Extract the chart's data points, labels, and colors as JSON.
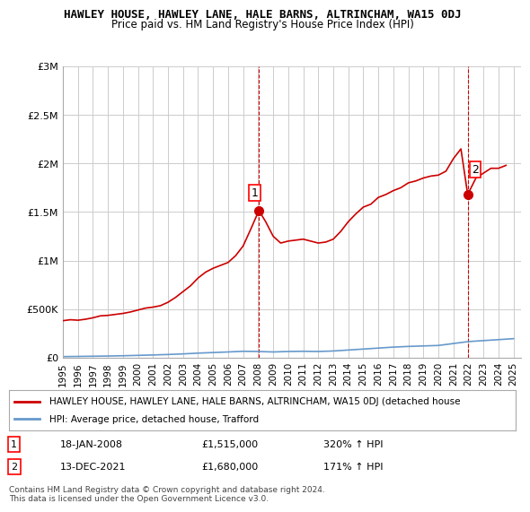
{
  "title": "HAWLEY HOUSE, HAWLEY LANE, HALE BARNS, ALTRINCHAM, WA15 0DJ",
  "subtitle": "Price paid vs. HM Land Registry's House Price Index (HPI)",
  "legend_line1": "HAWLEY HOUSE, HAWLEY LANE, HALE BARNS, ALTRINCHAM, WA15 0DJ (detached house",
  "legend_line2": "HPI: Average price, detached house, Trafford",
  "footer": "Contains HM Land Registry data © Crown copyright and database right 2024.\nThis data is licensed under the Open Government Licence v3.0.",
  "point1_label": "1",
  "point1_date": "18-JAN-2008",
  "point1_price": "£1,515,000",
  "point1_hpi": "320% ↑ HPI",
  "point2_label": "2",
  "point2_date": "13-DEC-2021",
  "point2_price": "£1,680,000",
  "point2_hpi": "171% ↑ HPI",
  "red_line_color": "#cc0000",
  "blue_line_color": "#6699cc",
  "background_color": "#ffffff",
  "grid_color": "#cccccc",
  "point1_x": 2008.05,
  "point1_y": 1515000,
  "point2_x": 2021.95,
  "point2_y": 1680000,
  "ylim": [
    0,
    3000000
  ],
  "xlim": [
    1995,
    2025.5
  ],
  "yticks": [
    0,
    500000,
    1000000,
    1500000,
    2000000,
    2500000,
    3000000
  ],
  "ytick_labels": [
    "£0",
    "£500K",
    "£1M",
    "£1.5M",
    "£2M",
    "£2.5M",
    "£3M"
  ],
  "xticks": [
    1995,
    1996,
    1997,
    1998,
    1999,
    2000,
    2001,
    2002,
    2003,
    2004,
    2005,
    2006,
    2007,
    2008,
    2009,
    2010,
    2011,
    2012,
    2013,
    2014,
    2015,
    2016,
    2017,
    2018,
    2019,
    2020,
    2021,
    2022,
    2023,
    2024,
    2025
  ],
  "red_hpi_data": {
    "x": [
      1995.0,
      1995.5,
      1996.0,
      1996.5,
      1997.0,
      1997.5,
      1998.0,
      1998.5,
      1999.0,
      1999.5,
      2000.0,
      2000.5,
      2001.0,
      2001.5,
      2002.0,
      2002.5,
      2003.0,
      2003.5,
      2004.0,
      2004.5,
      2005.0,
      2005.5,
      2006.0,
      2006.5,
      2007.0,
      2007.5,
      2008.05,
      2008.5,
      2009.0,
      2009.5,
      2010.0,
      2010.5,
      2011.0,
      2011.5,
      2012.0,
      2012.5,
      2013.0,
      2013.5,
      2014.0,
      2014.5,
      2015.0,
      2015.5,
      2016.0,
      2016.5,
      2017.0,
      2017.5,
      2018.0,
      2018.5,
      2019.0,
      2019.5,
      2020.0,
      2020.5,
      2021.0,
      2021.5,
      2021.95,
      2022.5,
      2023.0,
      2023.5,
      2024.0,
      2024.5
    ],
    "y": [
      380000,
      390000,
      385000,
      395000,
      410000,
      430000,
      435000,
      445000,
      455000,
      470000,
      490000,
      510000,
      520000,
      535000,
      570000,
      620000,
      680000,
      740000,
      820000,
      880000,
      920000,
      950000,
      980000,
      1050000,
      1150000,
      1320000,
      1515000,
      1400000,
      1250000,
      1180000,
      1200000,
      1210000,
      1220000,
      1200000,
      1180000,
      1190000,
      1220000,
      1300000,
      1400000,
      1480000,
      1550000,
      1580000,
      1650000,
      1680000,
      1720000,
      1750000,
      1800000,
      1820000,
      1850000,
      1870000,
      1880000,
      1920000,
      2050000,
      2150000,
      1680000,
      1850000,
      1900000,
      1950000,
      1950000,
      1980000
    ]
  },
  "blue_hpi_data": {
    "x": [
      1995.0,
      1996.0,
      1997.0,
      1998.0,
      1999.0,
      2000.0,
      2001.0,
      2002.0,
      2003.0,
      2004.0,
      2005.0,
      2006.0,
      2007.0,
      2008.0,
      2009.0,
      2010.0,
      2011.0,
      2012.0,
      2013.0,
      2014.0,
      2015.0,
      2016.0,
      2017.0,
      2018.0,
      2019.0,
      2020.0,
      2021.0,
      2022.0,
      2023.0,
      2024.0,
      2025.0
    ],
    "y": [
      10000,
      12000,
      14000,
      16000,
      19000,
      23000,
      27000,
      32000,
      38000,
      46000,
      52000,
      58000,
      65000,
      63000,
      58000,
      63000,
      65000,
      63000,
      68000,
      78000,
      88000,
      98000,
      108000,
      115000,
      120000,
      125000,
      145000,
      165000,
      175000,
      185000,
      195000
    ]
  }
}
